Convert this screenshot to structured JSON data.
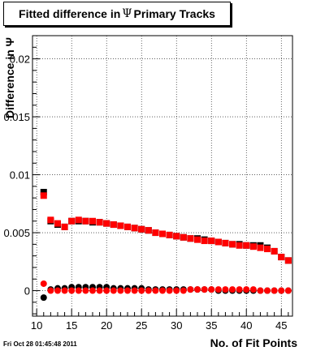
{
  "title_parts": [
    "Fitted difference in",
    "Ψ",
    "Primary Tracks"
  ],
  "footer_timestamp": "Fri Oct 28 01:45:48 2011",
  "chart_data": {
    "type": "scatter",
    "title": "Fitted difference inΨ Primary Tracks",
    "xlabel": "No. of Fit Points",
    "ylabel": "Difference in Ψ",
    "xlim": [
      9.4,
      46.6
    ],
    "ylim": [
      -0.0022,
      0.022
    ],
    "grid": true,
    "xticks": [
      10,
      15,
      20,
      25,
      30,
      35,
      40,
      45
    ],
    "xtick_labels": [
      "10",
      "15",
      "20",
      "25",
      "30",
      "35",
      "40",
      "45"
    ],
    "yticks": [
      0,
      0.005,
      0.01,
      0.015,
      0.02
    ],
    "ytick_labels": [
      "0",
      "0.005",
      "0.01",
      "0.015",
      "0.02"
    ],
    "x": [
      11,
      12,
      13,
      14,
      15,
      16,
      17,
      18,
      19,
      20,
      21,
      22,
      23,
      24,
      25,
      26,
      27,
      28,
      29,
      30,
      31,
      32,
      33,
      34,
      35,
      36,
      37,
      38,
      39,
      40,
      41,
      42,
      43,
      44,
      45,
      46
    ],
    "series": [
      {
        "color": "#000000",
        "marker": "square",
        "values": [
          0.0085,
          0.006,
          0.0057,
          0.0055,
          0.006,
          0.006,
          0.006,
          0.0059,
          0.0059,
          0.0058,
          0.0057,
          0.0056,
          0.0055,
          0.0054,
          0.0053,
          0.0052,
          0.005,
          0.0049,
          0.0048,
          0.0047,
          0.0046,
          0.0045,
          0.0045,
          0.0044,
          0.0043,
          0.0042,
          0.0041,
          0.004,
          0.004,
          0.0039,
          0.0039,
          0.0039,
          0.0037,
          0.0034,
          0.0029,
          0.0026
        ]
      },
      {
        "color": "#ff0000",
        "marker": "square",
        "values": [
          0.0082,
          0.0061,
          0.0058,
          0.0055,
          0.006,
          0.0061,
          0.006,
          0.006,
          0.0059,
          0.0058,
          0.0057,
          0.0056,
          0.0055,
          0.0054,
          0.0053,
          0.0052,
          0.005,
          0.0049,
          0.0048,
          0.0047,
          0.0046,
          0.0045,
          0.0044,
          0.0043,
          0.0043,
          0.0042,
          0.0041,
          0.004,
          0.0039,
          0.0039,
          0.0038,
          0.0037,
          0.0036,
          0.0034,
          0.0029,
          0.0026
        ]
      },
      {
        "color": "#000000",
        "marker": "circle",
        "values": [
          -0.0006,
          0.0001,
          0.0002,
          0.0002,
          0.0003,
          0.0003,
          0.0003,
          0.0003,
          0.0003,
          0.0003,
          0.0002,
          0.0002,
          0.0002,
          0.0002,
          0.0002,
          0.0001,
          0.0001,
          0.0001,
          0.0001,
          0.0001,
          0.0001,
          0.0001,
          0.0001,
          0.0001,
          0.0001,
          0.0,
          0.0,
          0.0,
          0.0,
          0.0,
          0.0,
          0.0,
          0.0,
          0.0,
          0.0,
          0.0
        ]
      },
      {
        "color": "#ff0000",
        "marker": "circle",
        "values": [
          0.0006,
          0.0,
          0.0,
          0.0,
          0.0,
          0.0,
          0.0,
          0.0,
          0.0,
          0.0,
          0.0,
          0.0,
          0.0,
          0.0,
          0.0,
          0.0,
          0.0,
          0.0,
          0.0,
          0.0,
          0.0,
          0.0001,
          0.0001,
          0.0001,
          0.0001,
          0.0001,
          0.0001,
          0.0001,
          0.0001,
          0.0001,
          0.0001,
          0.0,
          0.0,
          0.0,
          0.0,
          0.0
        ]
      }
    ]
  }
}
